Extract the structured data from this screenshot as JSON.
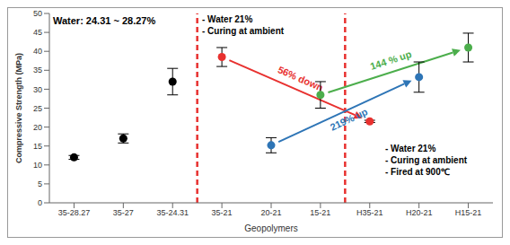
{
  "chart_data": {
    "type": "scatter",
    "x_label": "Geopolymers",
    "y_label": "Compressive Strength (MPa)",
    "categories": [
      "35-28.27",
      "35-27",
      "35-24.31",
      "35-21",
      "20-21",
      "15-21",
      "H35-21",
      "H20-21",
      "H15-21"
    ],
    "values": [
      12,
      17,
      32,
      38.5,
      15.2,
      28.5,
      21.5,
      33.2,
      41
    ],
    "errors": [
      0.5,
      1.2,
      3.5,
      2.5,
      2,
      3.5,
      0.3,
      4,
      3.8
    ],
    "colors": [
      "#000000",
      "#000000",
      "#000000",
      "#e8312f",
      "#2e75b6",
      "#4cae4c",
      "#e8312f",
      "#2e75b6",
      "#4cae4c"
    ],
    "ylim": [
      0,
      50
    ],
    "yticks": [
      0,
      5,
      10,
      15,
      20,
      25,
      30,
      35,
      40,
      45,
      50
    ],
    "grid": false,
    "marker": "circle",
    "annotations": [
      [
        "Water: 24.31 ~ 28.27%"
      ],
      [
        "- Water 21%",
        "- Curing at ambient"
      ],
      [
        "- Water 21%",
        "- Curing at ambient",
        "- Fired at 900℃"
      ]
    ],
    "arrows": [
      {
        "from": "35-21",
        "to": "H35-21",
        "label": "56% down",
        "color": "#e8312f"
      },
      {
        "from": "20-21",
        "to": "H20-21",
        "label": "219% up",
        "color": "#2e75b6"
      },
      {
        "from": "15-21",
        "to": "H15-21",
        "label": "144 % up",
        "color": "#4cae4c"
      }
    ]
  }
}
